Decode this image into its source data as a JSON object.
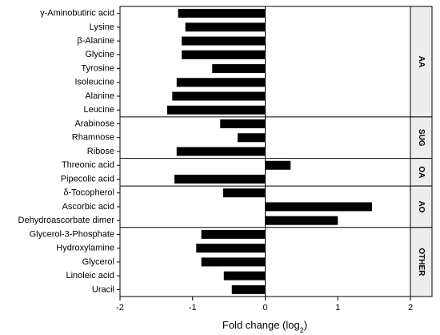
{
  "chart_data": {
    "type": "bar",
    "orientation": "horizontal",
    "xlabel": "Fold change (log",
    "xlabel_subscript": "2",
    "xlabel_suffix": ")",
    "xlim": [
      -2,
      2
    ],
    "xticks": [
      -2,
      -1,
      0,
      1,
      2
    ],
    "grid": false,
    "legend": "none",
    "bar_color": "#000000",
    "groups": [
      {
        "name": "AA",
        "categories": [
          "γ-Aminobutiric acid",
          "Lysine",
          "β-Alanine",
          "Glycine",
          "Tyrosine",
          "Isoleucine",
          "Alanine",
          "Leucine"
        ],
        "values": [
          -1.2,
          -1.1,
          -1.15,
          -1.15,
          -0.73,
          -1.22,
          -1.28,
          -1.35
        ]
      },
      {
        "name": "SUG",
        "categories": [
          "Arabinose",
          "Rhamnose",
          "Ribose"
        ],
        "values": [
          -0.62,
          -0.38,
          -1.22
        ]
      },
      {
        "name": "OA",
        "categories": [
          "Threonic acid",
          "Pipecolic acid"
        ],
        "values": [
          0.35,
          -1.25
        ]
      },
      {
        "name": "AO",
        "categories": [
          "δ-Tocopherol",
          "Ascorbic acid",
          "Dehydroascorbate dimer"
        ],
        "values": [
          -0.58,
          1.47,
          1.0
        ]
      },
      {
        "name": "OTHER",
        "categories": [
          "Glycerol-3-Phosphate",
          "Hydroxylamine",
          "Glycerol",
          "Linoleic acid",
          "Uracil"
        ],
        "values": [
          -0.88,
          -0.95,
          -0.88,
          -0.57,
          -0.46
        ]
      }
    ]
  }
}
